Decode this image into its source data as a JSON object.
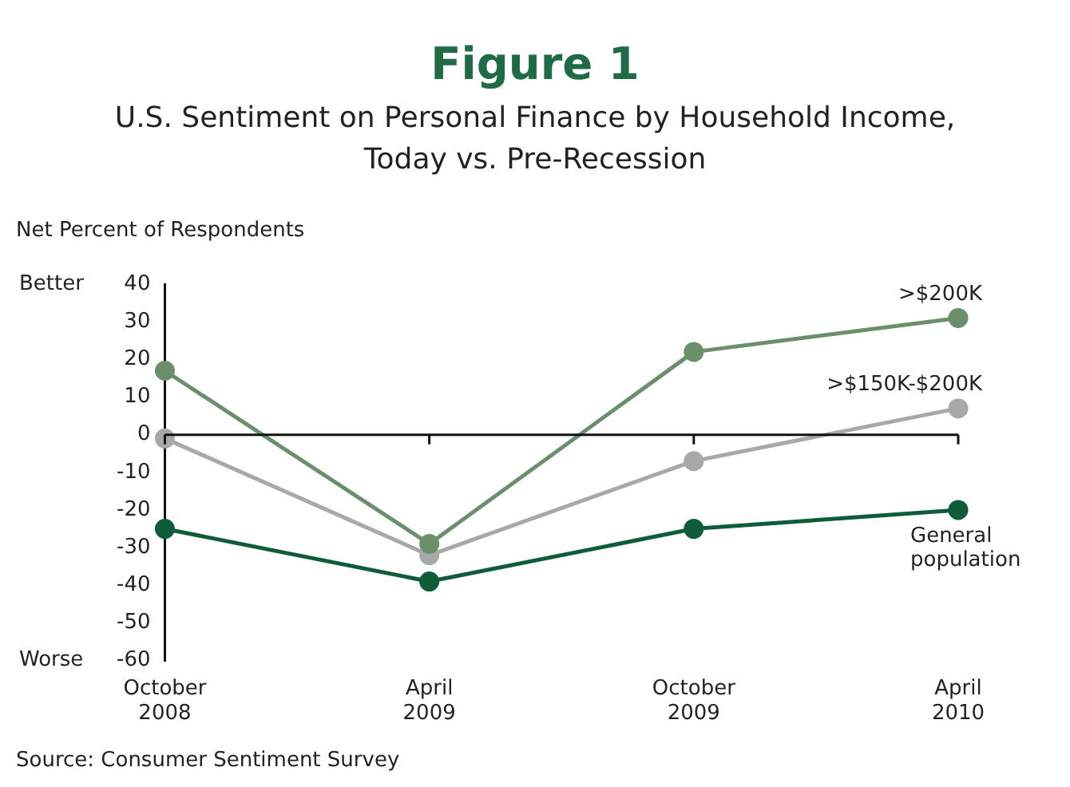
{
  "chart_data": {
    "type": "line",
    "title": "Figure 1",
    "subtitle": "U.S. Sentiment on Personal Finance by Household Income, Today vs. Pre-Recession",
    "ylabel": "Net Percent of Respondents",
    "categories": [
      "October 2008",
      "April 2009",
      "October 2009",
      "April 2010"
    ],
    "series": [
      {
        "name": ">$200K",
        "color": "#6b8f6b",
        "values": [
          17,
          -29,
          22,
          31
        ]
      },
      {
        "name": ">$150K-$200K",
        "color": "#a8a8a8",
        "values": [
          -1,
          -32,
          -7,
          7
        ]
      },
      {
        "name": "General population",
        "color": "#0e5c3a",
        "values": [
          -25,
          -39,
          -25,
          -20
        ]
      }
    ],
    "ylim": [
      -60,
      40
    ],
    "yticks": [
      -60,
      -50,
      -40,
      -30,
      -20,
      -10,
      0,
      10,
      20,
      30,
      40
    ],
    "marker": "circle",
    "line_style": "solid",
    "legend": false,
    "annotations": [
      "Better",
      "Worse",
      "Source: Consumer Sentiment Survey"
    ]
  }
}
